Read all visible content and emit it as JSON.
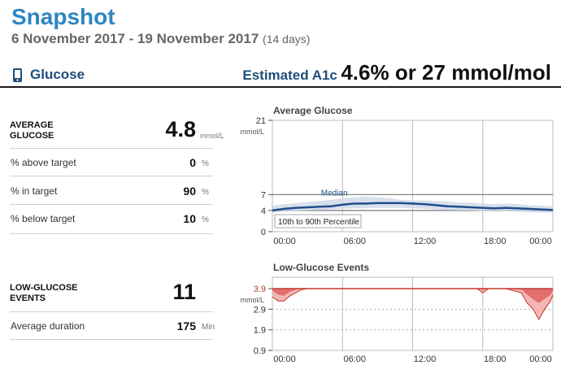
{
  "header": {
    "title": "Snapshot",
    "date_range": "6 November 2017 - 19 November 2017",
    "days": "(14 days)"
  },
  "section": {
    "label": "Glucose",
    "icon": "phone-icon",
    "a1c_label": "Estimated A1c",
    "a1c_value": "4.6% or 27 mmol/mol"
  },
  "colors": {
    "title_blue": "#2e86c1",
    "navy": "#1f4e79",
    "glucose_line": "#1f4e8c",
    "low_red": "#d9534f"
  },
  "stats": {
    "avg_glucose": {
      "label": "AVERAGE GLUCOSE",
      "value": "4.8",
      "unit": "mmol/L"
    },
    "rows": [
      {
        "label": "% above target",
        "value": "0",
        "unit": "%"
      },
      {
        "label": "% in target",
        "value": "90",
        "unit": "%"
      },
      {
        "label": "% below target",
        "value": "10",
        "unit": "%"
      }
    ]
  },
  "low_events": {
    "label": "LOW-GLUCOSE EVENTS",
    "value": "11",
    "duration_label": "Average duration",
    "duration_value": "175",
    "duration_unit": "Min"
  },
  "chart_data": [
    {
      "type": "line",
      "title": "Average Glucose",
      "ylabel": "mmol/L",
      "yticks": [
        "21",
        "7",
        "4",
        "0"
      ],
      "ytick_values": [
        21,
        7,
        4,
        0
      ],
      "ylim": [
        0,
        21
      ],
      "xticks": [
        "00:00",
        "06:00",
        "12:00",
        "18:00",
        "00:00"
      ],
      "xlim": [
        0,
        24
      ],
      "target_range": [
        4,
        7
      ],
      "series_label": "Median",
      "band_label": "10th to 90th Percentile",
      "x": [
        0,
        1,
        2,
        3,
        4,
        5,
        6,
        7,
        8,
        9,
        10,
        11,
        12,
        13,
        14,
        15,
        16,
        17,
        18,
        19,
        20,
        21,
        22,
        23,
        24
      ],
      "median": [
        4.0,
        4.3,
        4.5,
        4.6,
        4.7,
        4.8,
        5.1,
        5.3,
        5.3,
        5.4,
        5.4,
        5.4,
        5.3,
        5.2,
        5.0,
        4.8,
        4.7,
        4.6,
        4.5,
        4.4,
        4.5,
        4.4,
        4.3,
        4.2,
        4.1
      ],
      "p90": [
        4.9,
        5.2,
        5.4,
        5.6,
        5.8,
        6.0,
        6.3,
        6.5,
        6.6,
        6.5,
        6.3,
        6.0,
        5.9,
        5.9,
        5.8,
        5.7,
        5.5,
        5.5,
        5.3,
        5.2,
        5.3,
        5.2,
        5.0,
        4.9,
        4.8
      ],
      "p10": [
        3.6,
        3.8,
        3.9,
        4.0,
        4.1,
        4.2,
        4.3,
        4.4,
        4.4,
        4.5,
        4.5,
        4.5,
        4.4,
        4.3,
        4.2,
        4.1,
        4.0,
        4.0,
        3.9,
        3.8,
        3.9,
        3.8,
        3.7,
        3.6,
        3.6
      ]
    },
    {
      "type": "area",
      "title": "Low-Glucose Events",
      "ylabel": "mmol/L",
      "yticks": [
        "3.9",
        "2.9",
        "1.9",
        "0.9"
      ],
      "ytick_values": [
        3.9,
        2.9,
        1.9,
        0.9
      ],
      "ylim": [
        0.9,
        3.9
      ],
      "threshold": 3.9,
      "xticks": [
        "00:00",
        "06:00",
        "12:00",
        "18:00",
        "00:00"
      ],
      "xlim": [
        0,
        24
      ],
      "x": [
        0,
        0.5,
        1,
        1.5,
        2,
        2.5,
        3,
        3.5,
        4,
        8,
        12,
        16,
        17.5,
        18,
        18.5,
        19,
        20,
        21.3,
        21.8,
        22.3,
        22.8,
        23.3,
        23.8,
        24
      ],
      "min": [
        3.5,
        3.3,
        3.3,
        3.55,
        3.7,
        3.85,
        3.9,
        3.9,
        3.9,
        3.9,
        3.9,
        3.9,
        3.9,
        3.7,
        3.9,
        3.9,
        3.9,
        3.7,
        3.2,
        2.9,
        2.4,
        2.9,
        3.3,
        3.6
      ],
      "median": [
        3.8,
        3.6,
        3.55,
        3.75,
        3.85,
        3.9,
        3.9,
        3.9,
        3.9,
        3.9,
        3.9,
        3.9,
        3.9,
        3.85,
        3.9,
        3.9,
        3.9,
        3.85,
        3.6,
        3.4,
        3.2,
        3.4,
        3.6,
        3.8
      ]
    }
  ]
}
